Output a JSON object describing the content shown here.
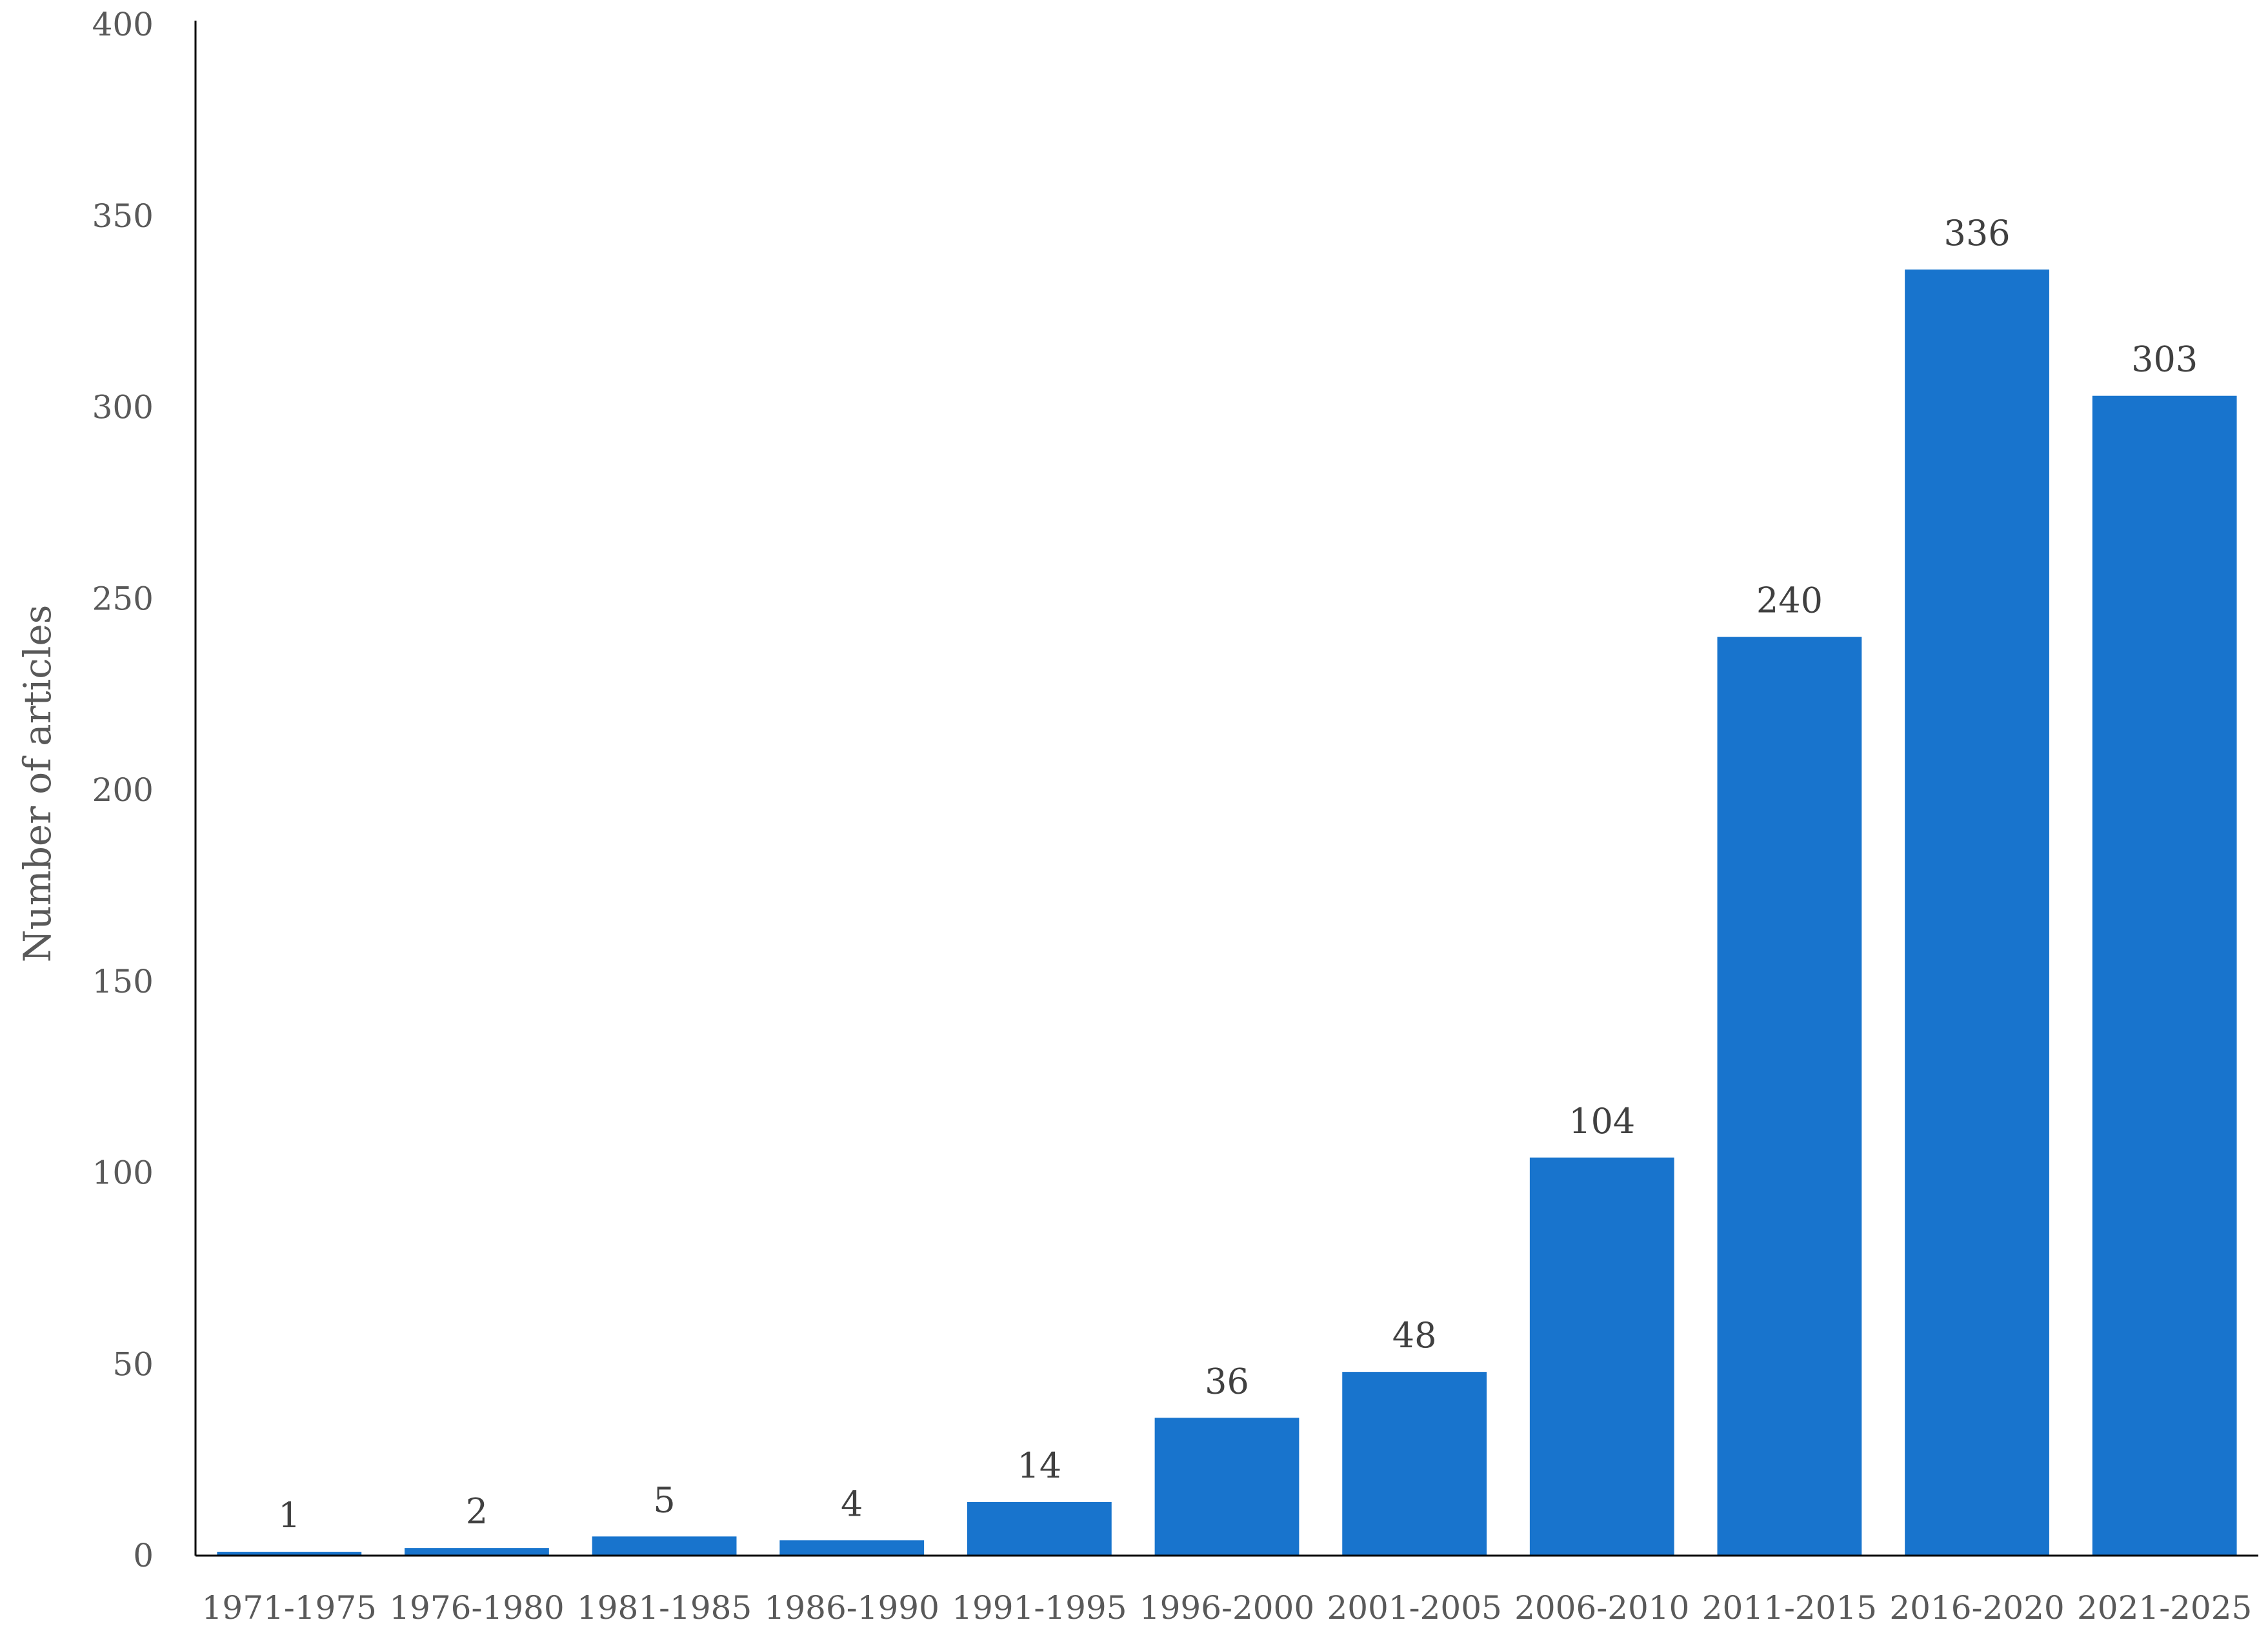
{
  "chart_data": {
    "type": "bar",
    "title": "",
    "xlabel": "",
    "ylabel": "Number of articles",
    "ylim": [
      0,
      400
    ],
    "yticks": [
      0,
      50,
      100,
      150,
      200,
      250,
      300,
      350,
      400
    ],
    "grid": false,
    "legend": "none",
    "bar_color": "#1874CD",
    "categories": [
      "1971-1975",
      "1976-1980",
      "1981-1985",
      "1986-1990",
      "1991-1995",
      "1996-2000",
      "2001-2005",
      "2006-2010",
      "2011-2015",
      "2016-2020",
      "2021-2025"
    ],
    "values": [
      1,
      2,
      5,
      4,
      14,
      36,
      48,
      104,
      240,
      336,
      303
    ]
  }
}
